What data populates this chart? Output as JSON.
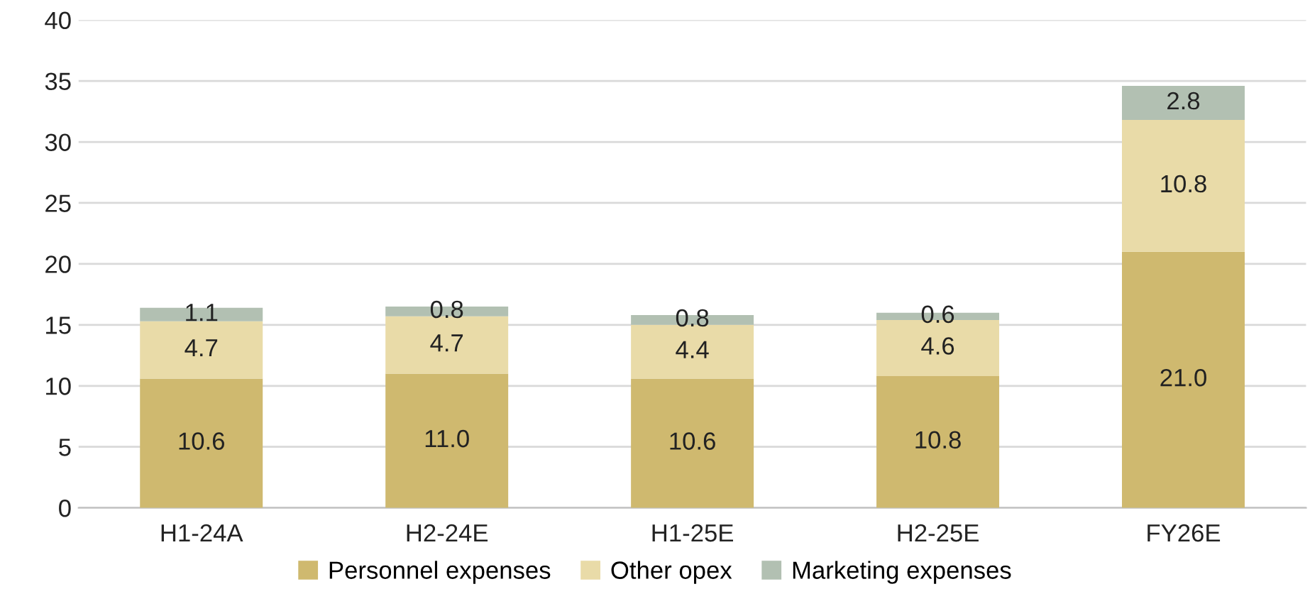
{
  "chart_data": {
    "type": "bar",
    "stacked": true,
    "categories": [
      "H1-24A",
      "H2-24E",
      "H1-25E",
      "H2-25E",
      "FY26E"
    ],
    "series": [
      {
        "name": "Personnel expenses",
        "color": "#cfb96f",
        "values": [
          10.6,
          11.0,
          10.6,
          10.8,
          21.0
        ],
        "value_labels": [
          "10.6",
          "11.0",
          "10.6",
          "10.8",
          "21.0"
        ]
      },
      {
        "name": "Other opex",
        "color": "#e9dba8",
        "values": [
          4.7,
          4.7,
          4.4,
          4.6,
          10.8
        ],
        "value_labels": [
          "4.7",
          "4.7",
          "4.4",
          "4.6",
          "10.8"
        ]
      },
      {
        "name": "Marketing expenses",
        "color": "#b2c0b2",
        "values": [
          1.1,
          0.8,
          0.8,
          0.6,
          2.8
        ],
        "value_labels": [
          "1.1",
          "0.8",
          "0.8",
          "0.6",
          "2.8"
        ]
      }
    ],
    "ylim": [
      0,
      40
    ],
    "yticks": [
      0,
      5,
      10,
      15,
      20,
      25,
      30,
      35,
      40
    ],
    "grid": "y",
    "legend": "bottom"
  }
}
